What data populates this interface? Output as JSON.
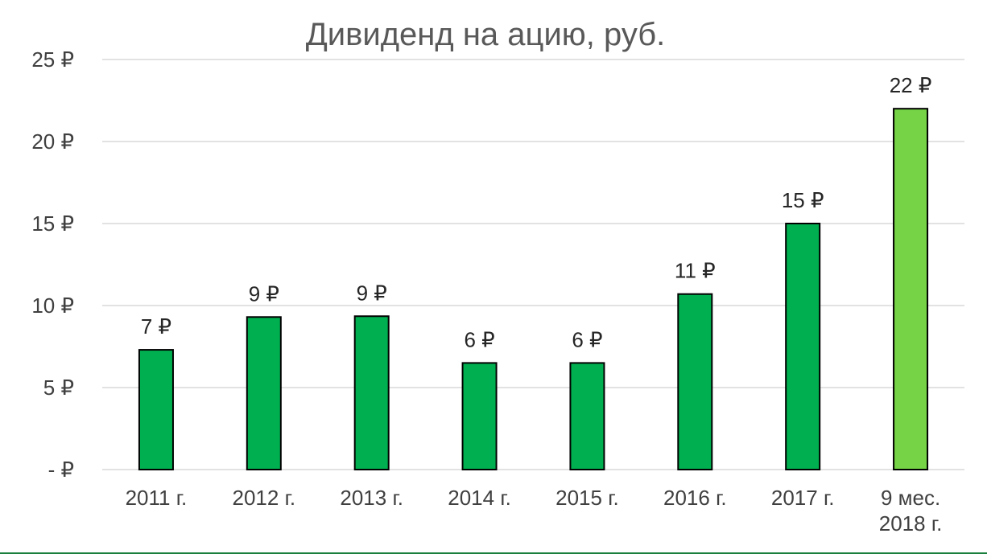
{
  "chart_data": {
    "type": "bar",
    "title": "Дивиденд на ацию, руб.",
    "categories": [
      "2011 г.",
      "2012 г.",
      "2013 г.",
      "2014 г.",
      "2015 г.",
      "2016 г.",
      "2017 г.",
      "9 мес. 2018 г."
    ],
    "values": [
      7.3,
      9.3,
      9.35,
      6.5,
      6.5,
      10.7,
      15.0,
      22.0
    ],
    "data_labels": [
      "7 ₽",
      "9 ₽",
      "9 ₽",
      "6 ₽",
      "6 ₽",
      "11 ₽",
      "15 ₽",
      "22 ₽"
    ],
    "y_tick_labels": [
      "-   ₽",
      "5 ₽",
      "10 ₽",
      "15 ₽",
      "20 ₽",
      "25 ₽"
    ],
    "y_ticks": [
      0,
      5,
      10,
      15,
      20,
      25
    ],
    "ylim": [
      0,
      25
    ],
    "grid": true,
    "legend": "none",
    "colors": [
      "#00b050",
      "#00b050",
      "#00b050",
      "#00b050",
      "#00b050",
      "#00b050",
      "#00b050",
      "#76d345"
    ],
    "bar_outline": "#000000"
  }
}
